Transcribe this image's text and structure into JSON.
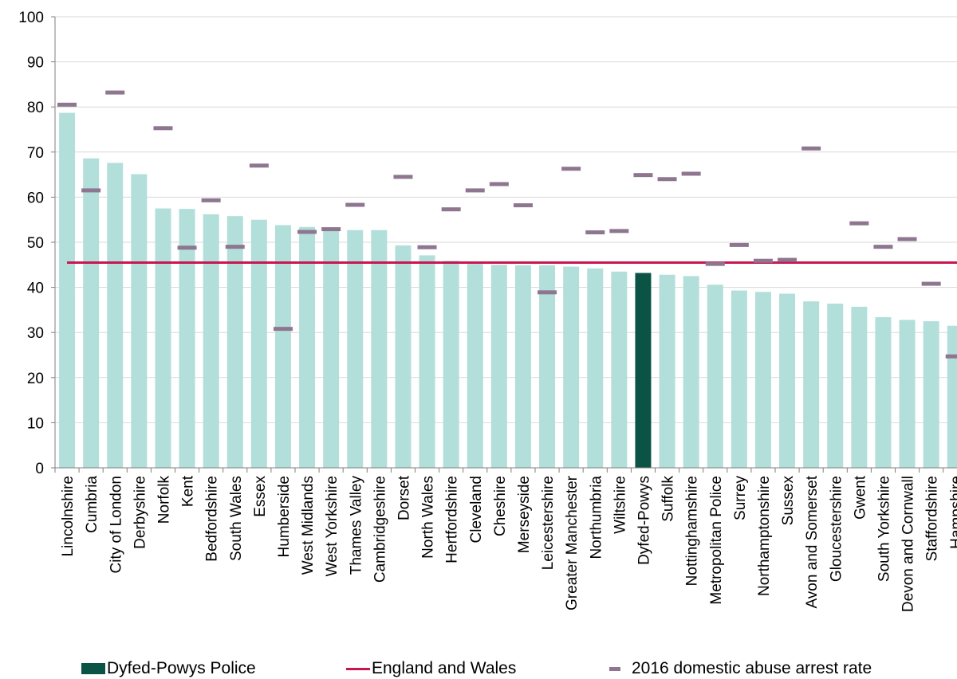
{
  "chart_data": {
    "type": "bar",
    "ylim": [
      0,
      100
    ],
    "yticks": [
      0,
      10,
      20,
      30,
      40,
      50,
      60,
      70,
      80,
      90,
      100
    ],
    "categories": [
      "Lincolnshire",
      "Cumbria",
      "City of London",
      "Derbyshire",
      "Norfolk",
      "Kent",
      "Bedfordshire",
      "South Wales",
      "Essex",
      "Humberside",
      "West Midlands",
      "West Yorkshire",
      "Thames Valley",
      "Cambridgeshire",
      "Dorset",
      "North Wales",
      "Hertfordshire",
      "Cleveland",
      "Cheshire",
      "Merseyside",
      "Leicestershire",
      "Greater Manchester",
      "Northumbria",
      "Wiltshire",
      "Dyfed-Powys",
      "Suffolk",
      "Nottinghamshire",
      "Metropolitan Police",
      "Surrey",
      "Northamptonshire",
      "Sussex",
      "Avon and Somerset",
      "Gloucestershire",
      "Gwent",
      "South Yorkshire",
      "Devon and Cornwall",
      "Staffordshire",
      "Hampshire"
    ],
    "values": [
      78.7,
      68.6,
      67.6,
      65.1,
      57.5,
      57.4,
      56.2,
      55.8,
      55.0,
      53.8,
      53.4,
      52.9,
      52.7,
      52.7,
      49.3,
      47.1,
      45.9,
      45.2,
      45.0,
      44.9,
      44.9,
      44.6,
      44.2,
      43.5,
      43.2,
      42.8,
      42.5,
      40.6,
      39.3,
      39.0,
      38.6,
      36.9,
      36.4,
      35.7,
      33.4,
      32.8,
      32.5,
      31.5
    ],
    "highlight_category": "Dyfed-Powys",
    "arrest_rate_2016": [
      80.5,
      61.5,
      83.2,
      null,
      75.3,
      48.8,
      59.3,
      49.0,
      67.0,
      30.8,
      52.3,
      52.9,
      58.3,
      null,
      64.5,
      48.9,
      57.3,
      61.5,
      62.9,
      58.2,
      38.9,
      66.3,
      52.2,
      52.5,
      64.9,
      64.0,
      65.2,
      45.2,
      49.4,
      45.9,
      46.1,
      70.8,
      null,
      54.2,
      49.0,
      50.7,
      40.8,
      24.7
    ],
    "england_and_wales": 45.5,
    "legend": {
      "highlight_bar": "Dyfed-Powys Police",
      "line": "England and Wales",
      "marker": "2016 domestic abuse arrest rate"
    },
    "colors": {
      "bar": "#b2dfda",
      "highlight": "#0b5345",
      "line": "#c8174f",
      "marker": "#8e7690",
      "axis": "#7f7f7f"
    },
    "grid": true
  }
}
